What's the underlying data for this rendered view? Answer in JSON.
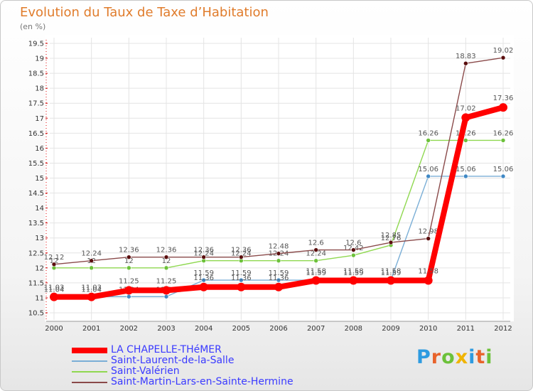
{
  "header": {
    "title": "Evolution du Taux de Taxe d’Habitation",
    "subtitle": "(en %)"
  },
  "logo": {
    "text": "Proxiti",
    "letter_colors": [
      "#2e9be0",
      "#e8632b",
      "#6cc13a",
      "#f0b400",
      "#2e9be0",
      "#e8632b",
      "#6cc13a"
    ]
  },
  "chart_data": {
    "type": "line",
    "title": "Evolution du Taux de Taxe d’Habitation",
    "subtitle": "(en %)",
    "xlabel": "",
    "ylabel": "",
    "ylim": [
      10.5,
      19.5
    ],
    "grid": true,
    "x": [
      "2000",
      "2001",
      "2002",
      "2003",
      "2004",
      "2005",
      "2006",
      "2007",
      "2008",
      "2009",
      "2010",
      "2011",
      "2012"
    ],
    "y_ticks": [
      "10.5",
      "11",
      "11.5",
      "12",
      "12.5",
      "13",
      "13.5",
      "14",
      "14.5",
      "15",
      "15.5",
      "16",
      "16.5",
      "17",
      "17.5",
      "18",
      "18.5",
      "19",
      "19.5"
    ],
    "series": [
      {
        "name": "Saint-Valérien",
        "color": "#8fd850",
        "marker": "#6cc13a",
        "values": [
          12,
          12,
          12,
          12,
          12.24,
          12.24,
          12.24,
          12.24,
          12.42,
          12.76,
          16.26,
          16.26,
          16.26
        ],
        "labels": [
          "12",
          "12",
          "12",
          "12",
          "12.24",
          "12.24",
          "12.24",
          "12.24",
          "12.42",
          "12.76",
          "16.26",
          "16.26",
          "16.26"
        ]
      },
      {
        "name": "Saint-Laurent-de-la-Salle",
        "color": "#7aaed6",
        "marker": "#3f88c5",
        "values": [
          11.04,
          11.04,
          11.04,
          11.04,
          11.59,
          11.59,
          11.59,
          11.59,
          11.59,
          11.59,
          15.06,
          15.06,
          15.06
        ],
        "labels": [
          "11.04",
          "11.04",
          "11.04",
          "11.04",
          "11.59",
          "11.59",
          "11.59",
          "11.59",
          "11.59",
          "11.59",
          "15.06",
          "15.06",
          "15.06"
        ]
      },
      {
        "name": "Saint-Martin-Lars-en-Sainte-Hermine",
        "color": "#8a4a4a",
        "marker": "#5a0e0e",
        "values": [
          12.12,
          12.24,
          12.36,
          12.36,
          12.36,
          12.36,
          12.48,
          12.6,
          12.6,
          12.85,
          12.98,
          18.83,
          19.02
        ],
        "labels": [
          "12.12",
          "12.24",
          "12.36",
          "12.36",
          "12.36",
          "12.36",
          "12.48",
          "12.6",
          "12.6",
          "12.85",
          "12.98",
          "18.83",
          "19.02"
        ]
      },
      {
        "name": "LA CHAPELLE-THéMER",
        "color": "#ff0000",
        "marker": "#ff0000",
        "values": [
          11.03,
          11.03,
          11.25,
          11.25,
          11.36,
          11.36,
          11.36,
          11.58,
          11.58,
          11.58,
          11.58,
          17.02,
          17.36
        ],
        "labels": [
          "11.03",
          "11.03",
          "11.25",
          "11.25",
          "11.36",
          "11.36",
          "11.36",
          "11.58",
          "11.58",
          "11.58",
          "11.58",
          "17.02",
          "17.36"
        ]
      }
    ],
    "legend": {
      "position": "bottom-left",
      "entries": [
        {
          "label": "LA CHAPELLE-THéMER",
          "color": "#ff0000",
          "text_color": "#3a3aff"
        },
        {
          "label": "Saint-Laurent-de-la-Salle",
          "color": "#7aaed6",
          "text_color": "#3a3aff"
        },
        {
          "label": "Saint-Valérien",
          "color": "#8fd850",
          "text_color": "#3a3aff"
        },
        {
          "label": "Saint-Martin-Lars-en-Sainte-Hermine",
          "color": "#8a4a4a",
          "text_color": "#3a3aff"
        }
      ]
    }
  }
}
